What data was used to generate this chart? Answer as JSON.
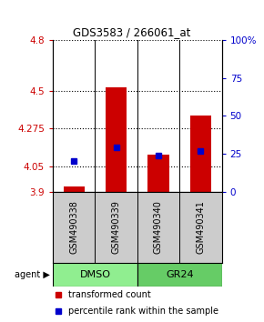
{
  "title": "GDS3583 / 266061_at",
  "samples": [
    "GSM490338",
    "GSM490339",
    "GSM490340",
    "GSM490341"
  ],
  "group_labels": [
    "DMSO",
    "GR24"
  ],
  "group_colors": [
    "#90ee90",
    "#66cc66"
  ],
  "bar_values": [
    3.93,
    4.52,
    4.12,
    4.35
  ],
  "percentile_values": [
    20,
    29,
    24,
    27
  ],
  "y_min": 3.9,
  "y_max": 4.8,
  "y_ticks_left": [
    3.9,
    4.05,
    4.275,
    4.5,
    4.8
  ],
  "y_ticks_right": [
    0,
    25,
    50,
    75,
    100
  ],
  "bar_color": "#cc0000",
  "percentile_color": "#0000cc",
  "legend_bar_label": "transformed count",
  "legend_pct_label": "percentile rank within the sample",
  "sample_box_color": "#cccccc",
  "figure_bg": "#ffffff",
  "plot_bg": "#ffffff",
  "bar_width": 0.5
}
